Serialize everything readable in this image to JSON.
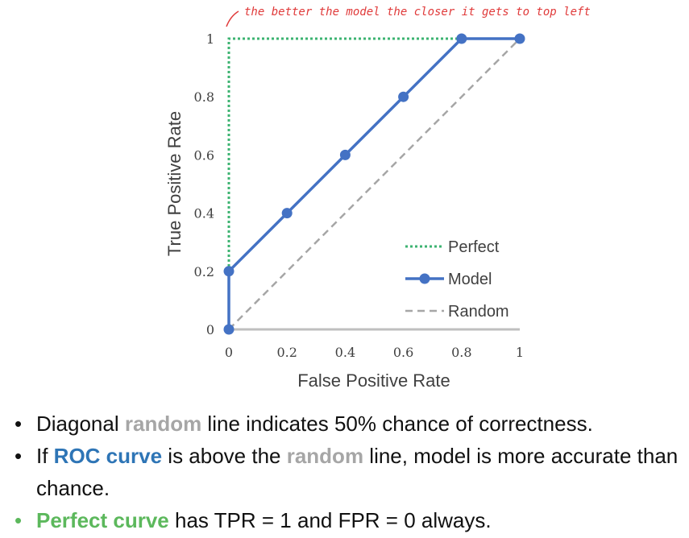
{
  "annotation": "the better the model the closer it gets to top left",
  "chart_data": {
    "type": "line",
    "title": "",
    "xlabel": "False Positive Rate",
    "ylabel": "True Positive Rate",
    "xlim": [
      0,
      1
    ],
    "ylim": [
      0,
      1
    ],
    "x_ticks": [
      "0",
      "0.2",
      "0.4",
      "0.6",
      "0.8",
      "1"
    ],
    "y_ticks": [
      "0",
      "0.2",
      "0.4",
      "0.6",
      "0.8",
      "1"
    ],
    "grid": false,
    "legend_position": "right",
    "series": [
      {
        "name": "Perfect",
        "style": "dotted",
        "color": "#3cb371",
        "markers": false,
        "x": [
          0,
          0,
          1
        ],
        "y": [
          0,
          1,
          1
        ]
      },
      {
        "name": "Model",
        "style": "solid",
        "color": "#4472c4",
        "markers": true,
        "x": [
          0,
          0,
          0.2,
          0.4,
          0.6,
          0.8,
          1
        ],
        "y": [
          0,
          0.2,
          0.4,
          0.6,
          0.8,
          1,
          1
        ]
      },
      {
        "name": "Random",
        "style": "dashed",
        "color": "#a6a6a6",
        "markers": false,
        "x": [
          0,
          1
        ],
        "y": [
          0,
          1
        ]
      }
    ]
  },
  "bullets": [
    {
      "parts": [
        {
          "text": "Diagonal ",
          "color": "#111111"
        },
        {
          "text": "random",
          "color": "#a6a6a6",
          "bold": true
        },
        {
          "text": " line indicates 50% chance of correctness.",
          "color": "#111111"
        }
      ]
    },
    {
      "parts": [
        {
          "text": "If ",
          "color": "#111111"
        },
        {
          "text": "ROC curve",
          "color": "#2e75b6",
          "bold": true
        },
        {
          "text": " is above the ",
          "color": "#111111"
        },
        {
          "text": "random",
          "color": "#a6a6a6",
          "bold": true
        },
        {
          "text": " line, model is more accurate than chance.",
          "color": "#111111"
        }
      ]
    },
    {
      "parts": [
        {
          "text": "Perfect curve",
          "color": "#5cb85c",
          "bold": true
        },
        {
          "text": " has TPR = 1 and FPR = 0 always.",
          "color": "#111111"
        }
      ],
      "bullet_color": "#5cb85c"
    }
  ]
}
